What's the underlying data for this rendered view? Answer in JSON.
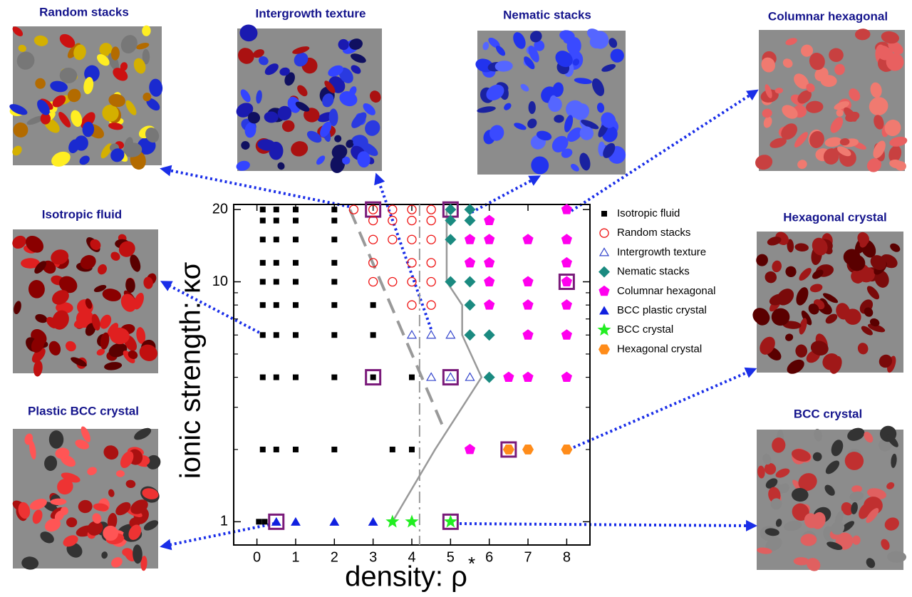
{
  "panels": [
    {
      "title": "Random stacks"
    },
    {
      "title": "Intergrowth texture"
    },
    {
      "title": "Nematic stacks"
    },
    {
      "title": "Columnar hexagonal"
    },
    {
      "title": "Isotropic  fluid"
    },
    {
      "title": "Hexagonal crystal"
    },
    {
      "title": "Plastic BCC crystal"
    },
    {
      "title": "BCC crystal"
    }
  ],
  "chart_data": {
    "type": "scatter",
    "xlabel": "density: ρ",
    "xlabel_mark": "*",
    "ylabel": "ionic strength: κσ",
    "xlim": [
      -0.6,
      8.6
    ],
    "ylim": [
      0.8,
      21
    ],
    "ylog": true,
    "xticks": [
      0,
      1,
      2,
      3,
      4,
      5,
      6,
      7,
      8
    ],
    "yticks": [
      1,
      10,
      20
    ],
    "yminor": [
      2,
      3,
      4,
      5,
      6,
      7,
      8,
      9
    ],
    "legend": "right",
    "series": [
      {
        "name": "Isotropic fluid",
        "color": "#000000",
        "marker": "square",
        "x": [
          0.15,
          0.5,
          1,
          2,
          0.15,
          0.5,
          1,
          2,
          0.15,
          0.5,
          1,
          2,
          0.15,
          0.5,
          1,
          2,
          0.15,
          0.5,
          1,
          2,
          0.15,
          0.5,
          1,
          2,
          3,
          0.15,
          0.5,
          1,
          2,
          3,
          0.15,
          0.5,
          1,
          2,
          3,
          4,
          0.15,
          0.5,
          1,
          2,
          3.5,
          4,
          0.05,
          0.2
        ],
        "y": [
          20,
          20,
          20,
          20,
          18,
          18,
          18,
          18,
          15,
          15,
          15,
          15,
          12,
          12,
          12,
          12,
          10,
          10,
          10,
          10,
          8,
          8,
          8,
          8,
          8,
          6,
          6,
          6,
          6,
          6,
          4,
          4,
          4,
          4,
          4,
          4,
          2,
          2,
          2,
          2,
          2,
          2,
          1,
          1
        ]
      },
      {
        "name": "Random stacks",
        "color": "#ee1111",
        "marker": "circle-open",
        "x": [
          2.5,
          3,
          3.5,
          4,
          4.5,
          3,
          3.5,
          4,
          4.5,
          3,
          3.5,
          4,
          4.5,
          3,
          4,
          4.5,
          3,
          3.5,
          4,
          4.5,
          4,
          4.5
        ],
        "y": [
          20,
          20,
          20,
          20,
          20,
          18,
          18,
          18,
          18,
          15,
          15,
          15,
          15,
          12,
          12,
          12,
          10,
          10,
          10,
          10,
          8,
          8
        ]
      },
      {
        "name": "Intergrowth texture",
        "color": "#3344cc",
        "marker": "triangle-open",
        "x": [
          4,
          4.5,
          5,
          4.5,
          5,
          5.5
        ],
        "y": [
          6,
          6,
          6,
          4,
          4,
          4
        ]
      },
      {
        "name": "Nematic stacks",
        "color": "#1a8a80",
        "marker": "diamond",
        "x": [
          5,
          5.5,
          5,
          5.5,
          5,
          5,
          5.5,
          5.5,
          5.5,
          6,
          6
        ],
        "y": [
          20,
          20,
          18,
          18,
          15,
          10,
          10,
          8,
          6,
          6,
          4
        ]
      },
      {
        "name": "Columnar hexagonal",
        "color": "#ff00ee",
        "marker": "pentagon",
        "x": [
          8,
          6,
          5.5,
          6,
          7,
          8,
          5.5,
          6,
          8,
          6,
          7,
          8,
          6,
          7,
          8,
          7,
          8,
          6.5,
          7,
          8,
          5.5
        ],
        "y": [
          20,
          18,
          15,
          15,
          15,
          15,
          12,
          12,
          12,
          10,
          10,
          10,
          8,
          8,
          8,
          6,
          6,
          4,
          4,
          4,
          2
        ]
      },
      {
        "name": "BCC plastic crystal",
        "color": "#1020e0",
        "marker": "triangle",
        "x": [
          0.5,
          1,
          2,
          3
        ],
        "y": [
          1,
          1,
          1,
          1
        ]
      },
      {
        "name": "BCC crystal",
        "color": "#22ee22",
        "marker": "star",
        "x": [
          3.5,
          4,
          5
        ],
        "y": [
          1,
          1,
          1
        ]
      },
      {
        "name": "Hexagonal crystal",
        "color": "#ff8c1a",
        "marker": "hexagon",
        "x": [
          6.5,
          7,
          8
        ],
        "y": [
          2,
          2,
          2
        ]
      }
    ],
    "highlighted": {
      "color": "#7a1a7a",
      "x": [
        3,
        5,
        8,
        3,
        5,
        6.5,
        0.5,
        5
      ],
      "y": [
        20,
        20,
        10,
        4,
        4,
        2,
        1,
        1
      ]
    },
    "lines": [
      {
        "style": "solid",
        "color": "#999999",
        "x": [
          4.9,
          4.9,
          5.3,
          5.3,
          5.8,
          4.6,
          3.5
        ],
        "y": [
          20,
          10,
          8,
          6,
          4,
          2,
          1
        ]
      },
      {
        "style": "dashed",
        "color": "#999999",
        "x": [
          2.4,
          4.8
        ],
        "y": [
          20,
          2.5
        ]
      }
    ],
    "vline": {
      "style": "dashdot",
      "color": "#999999",
      "x": 4.2
    }
  }
}
